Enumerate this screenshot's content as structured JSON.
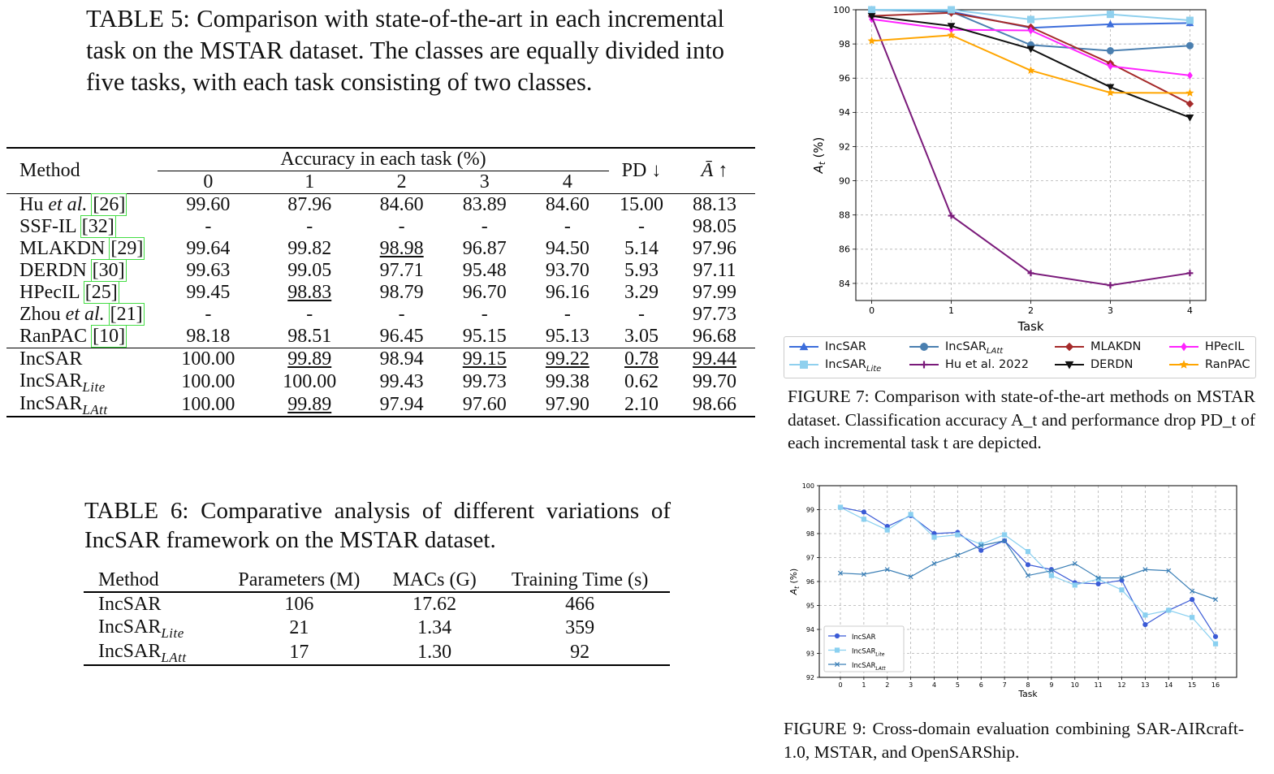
{
  "table5": {
    "caption": "TABLE 5: Comparison with state-of-the-art in each incremental task on the MSTAR dataset. The classes are equally divided into five tasks, with each task consisting of two classes.",
    "header_method": "Method",
    "header_accuracy": "Accuracy in each task (%)",
    "task_cols": [
      "0",
      "1",
      "2",
      "3",
      "4"
    ],
    "header_pd": "PD ↓",
    "header_abar": "Ā ↑",
    "rows": [
      {
        "name": "Hu",
        "name_it": "et al.",
        "ref": "[26]",
        "cells": [
          "99.60",
          "87.96",
          "84.60",
          "83.89",
          "84.60",
          "15.00",
          "88.13"
        ]
      },
      {
        "name": "SSF-IL ",
        "name_it": "",
        "ref": "[32]",
        "cells": [
          "-",
          "-",
          "-",
          "-",
          "-",
          "-",
          "98.05"
        ]
      },
      {
        "name": "MLAKDN ",
        "name_it": "",
        "ref": "[29]",
        "cells": [
          "99.64",
          "99.82",
          "98.98",
          "96.87",
          "94.50",
          "5.14",
          "97.96"
        ]
      },
      {
        "name": "DERDN ",
        "name_it": "",
        "ref": "[30]",
        "cells": [
          "99.63",
          "99.05",
          "97.71",
          "95.48",
          "93.70",
          "5.93",
          "97.11"
        ]
      },
      {
        "name": "HPecIL ",
        "name_it": "",
        "ref": "[25]",
        "cells": [
          "99.45",
          "98.83",
          "98.79",
          "96.70",
          "96.16",
          "3.29",
          "97.99"
        ]
      },
      {
        "name": "Zhou",
        "name_it": "et al.",
        "ref": "[21]",
        "cells": [
          "-",
          "-",
          "-",
          "-",
          "-",
          "-",
          "97.73"
        ]
      },
      {
        "name": "RanPAC ",
        "name_it": "",
        "ref": "[10]",
        "cells": [
          "98.18",
          "98.51",
          "96.45",
          "95.15",
          "95.13",
          "3.05",
          "96.68"
        ]
      }
    ],
    "ours": [
      {
        "name": "IncSAR",
        "sub": "",
        "cells": [
          "100.00",
          "99.89",
          "98.94",
          "99.15",
          "99.22",
          "0.78",
          "99.44"
        ]
      },
      {
        "name": "IncSAR",
        "sub": "Lite",
        "cells": [
          "100.00",
          "100.00",
          "99.43",
          "99.73",
          "99.38",
          "0.62",
          "99.70"
        ]
      },
      {
        "name": "IncSAR",
        "sub": "LAtt",
        "cells": [
          "100.00",
          "99.89",
          "97.94",
          "97.60",
          "97.90",
          "2.10",
          "98.66"
        ]
      }
    ]
  },
  "table6": {
    "caption": "TABLE 6: Comparative analysis of different variations of IncSAR framework on the MSTAR dataset.",
    "headers": [
      "Method",
      "Parameters (M)",
      "MACs (G)",
      "Training Time (s)"
    ],
    "rows": [
      {
        "name": "IncSAR",
        "sub": "",
        "cells": [
          "106",
          "17.62",
          "466"
        ]
      },
      {
        "name": "IncSAR",
        "sub": "Lite",
        "cells": [
          "21",
          "1.34",
          "359"
        ]
      },
      {
        "name": "IncSAR",
        "sub": "LAtt",
        "cells": [
          "17",
          "1.30",
          "92"
        ]
      }
    ]
  },
  "figure7": {
    "caption": "FIGURE 7: Comparison with state-of-the-art methods on MSTAR dataset. Classification accuracy A_t and performance drop PD_t of each incremental task t are depicted.",
    "legend": [
      {
        "label": "IncSAR",
        "sub": ""
      },
      {
        "label": "IncSAR",
        "sub": "LAtt"
      },
      {
        "label": "MLAKDN",
        "sub": ""
      },
      {
        "label": "HPecIL",
        "sub": ""
      },
      {
        "label": "IncSAR",
        "sub": "Lite"
      },
      {
        "label": "Hu et al. 2022",
        "sub": ""
      },
      {
        "label": "DERDN",
        "sub": ""
      },
      {
        "label": "RanPAC",
        "sub": ""
      }
    ]
  },
  "figure9": {
    "caption": "FIGURE 9: Cross-domain evaluation combining SAR-AIRcraft-1.0, MSTAR, and OpenSARShip."
  },
  "chart_data": [
    {
      "type": "line",
      "xlabel": "Task",
      "ylabel": "A_t (%)",
      "x": [
        0,
        1,
        2,
        3,
        4
      ],
      "xlim": [
        -0.2,
        4.2
      ],
      "ylim": [
        83,
        100
      ],
      "yticks": [
        84,
        86,
        88,
        90,
        92,
        94,
        96,
        98,
        100
      ],
      "grid": true,
      "legend_position": "below",
      "series": [
        {
          "name": "IncSAR",
          "color": "#3c6ddb",
          "marker": "triangle",
          "values": [
            100.0,
            99.89,
            98.94,
            99.15,
            99.22
          ]
        },
        {
          "name": "IncSAR_LAtt",
          "color": "#4a7fb0",
          "marker": "circle",
          "values": [
            100.0,
            99.89,
            97.94,
            97.6,
            97.9
          ]
        },
        {
          "name": "MLAKDN",
          "color": "#a52a2a",
          "marker": "diamond",
          "values": [
            99.64,
            99.82,
            98.98,
            96.87,
            94.5
          ]
        },
        {
          "name": "HPecIL",
          "color": "#ff22ff",
          "marker": "diamond-thin",
          "values": [
            99.45,
            98.83,
            98.79,
            96.7,
            96.16
          ]
        },
        {
          "name": "IncSAR_Lite",
          "color": "#8fd0ee",
          "marker": "square",
          "values": [
            100.0,
            100.0,
            99.43,
            99.73,
            99.38
          ]
        },
        {
          "name": "Hu et al. 2022",
          "color": "#7a1a7a",
          "marker": "plus",
          "values": [
            99.6,
            87.96,
            84.6,
            83.89,
            84.6
          ]
        },
        {
          "name": "DERDN",
          "color": "#111111",
          "marker": "triangle-down",
          "values": [
            99.63,
            99.05,
            97.71,
            95.48,
            93.7
          ]
        },
        {
          "name": "RanPAC",
          "color": "#ffa500",
          "marker": "star",
          "values": [
            98.18,
            98.51,
            96.45,
            95.15,
            95.13
          ]
        }
      ]
    },
    {
      "type": "line",
      "xlabel": "Task",
      "ylabel": "A_t (%)",
      "x": [
        0,
        1,
        2,
        3,
        4,
        5,
        6,
        7,
        8,
        9,
        10,
        11,
        12,
        13,
        14,
        15,
        16
      ],
      "xlim": [
        -0.9,
        16.9
      ],
      "ylim": [
        92,
        100
      ],
      "yticks": [
        92,
        93,
        94,
        95,
        96,
        97,
        98,
        99,
        100
      ],
      "grid": true,
      "legend_position": "lower left",
      "series": [
        {
          "name": "IncSAR",
          "color": "#3b5bd6",
          "marker": "circle",
          "values": [
            99.1,
            98.9,
            98.3,
            98.75,
            98.0,
            98.05,
            97.3,
            97.7,
            96.7,
            96.5,
            95.95,
            95.9,
            96.05,
            94.2,
            94.8,
            95.25,
            93.7
          ]
        },
        {
          "name": "IncSAR_Lite",
          "color": "#8ad0f0",
          "marker": "square",
          "values": [
            99.1,
            98.6,
            98.15,
            98.8,
            97.85,
            97.95,
            97.55,
            97.95,
            97.25,
            96.25,
            95.85,
            96.1,
            95.65,
            94.6,
            94.8,
            94.5,
            93.4
          ]
        },
        {
          "name": "IncSAR_LAtt",
          "color": "#3b7fb6",
          "marker": "x",
          "values": [
            96.35,
            96.3,
            96.5,
            96.2,
            96.75,
            97.1,
            97.5,
            97.7,
            96.25,
            96.45,
            96.75,
            96.15,
            96.15,
            96.5,
            96.45,
            95.6,
            95.25
          ]
        }
      ]
    }
  ]
}
